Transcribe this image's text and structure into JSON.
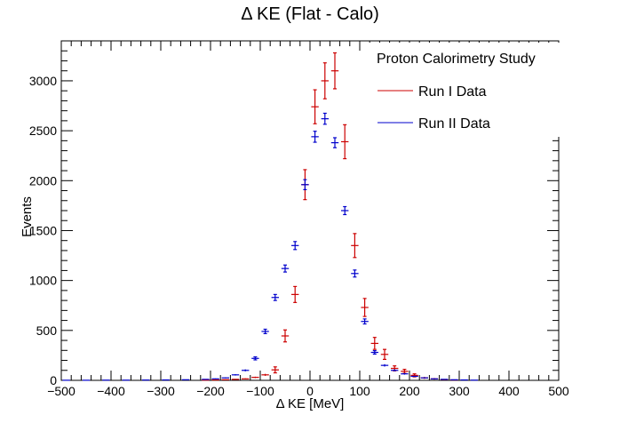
{
  "chart_data": {
    "type": "scatter",
    "title": "Δ KE (Flat - Calo)",
    "xlabel": "Δ KE [MeV]",
    "ylabel": "Events",
    "xlim": [
      -500,
      500
    ],
    "ylim": [
      0,
      3400
    ],
    "bin_width": 20,
    "grid": false,
    "legend": {
      "position": "top-right",
      "header": "Proton Calorimetry Study"
    },
    "xticks": [
      -500,
      -400,
      -300,
      -200,
      -100,
      0,
      100,
      200,
      300,
      400,
      500
    ],
    "yticks": [
      0,
      500,
      1000,
      1500,
      2000,
      2500,
      3000
    ],
    "series": [
      {
        "name": "Run I Data",
        "color": "#cc0000",
        "x": [
          -210,
          -190,
          -170,
          -150,
          -130,
          -110,
          -90,
          -70,
          -50,
          -30,
          -10,
          10,
          30,
          50,
          70,
          90,
          110,
          130,
          150,
          170,
          190,
          210,
          230,
          250,
          270,
          290
        ],
        "y": [
          2,
          4,
          6,
          10,
          15,
          30,
          55,
          105,
          445,
          860,
          1960,
          2740,
          3000,
          3100,
          2390,
          1350,
          730,
          370,
          260,
          120,
          90,
          50,
          25,
          15,
          8,
          4
        ],
        "err": [
          2,
          2,
          3,
          4,
          5,
          7,
          10,
          30,
          60,
          80,
          150,
          170,
          180,
          180,
          170,
          120,
          90,
          60,
          50,
          25,
          20,
          15,
          10,
          8,
          5,
          3
        ]
      },
      {
        "name": "Run II Data",
        "color": "#0000cc",
        "x": [
          -490,
          -450,
          -410,
          -370,
          -330,
          -290,
          -250,
          -210,
          -190,
          -170,
          -150,
          -130,
          -110,
          -90,
          -70,
          -50,
          -30,
          -10,
          10,
          30,
          50,
          70,
          90,
          110,
          130,
          150,
          170,
          190,
          210,
          230,
          250,
          270,
          290,
          310,
          330
        ],
        "y": [
          1,
          1,
          2,
          2,
          3,
          4,
          6,
          10,
          15,
          25,
          55,
          100,
          220,
          490,
          830,
          1120,
          1350,
          1960,
          2440,
          2620,
          2380,
          1700,
          1070,
          590,
          280,
          150,
          100,
          65,
          40,
          25,
          15,
          10,
          6,
          4,
          2
        ],
        "err": [
          1,
          1,
          1,
          1,
          2,
          2,
          3,
          3,
          4,
          5,
          7,
          10,
          15,
          22,
          30,
          35,
          40,
          50,
          55,
          55,
          50,
          40,
          35,
          25,
          17,
          12,
          10,
          8,
          6,
          5,
          4,
          3,
          2,
          2,
          1
        ]
      }
    ]
  }
}
